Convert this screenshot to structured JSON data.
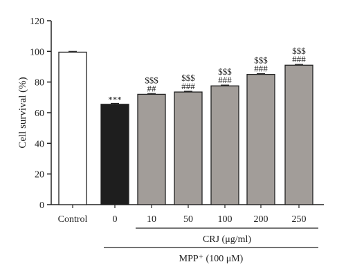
{
  "chart_data": {
    "type": "bar",
    "categories": [
      "Control",
      "0",
      "10",
      "50",
      "100",
      "200",
      "250"
    ],
    "values": [
      99.5,
      65.5,
      72.0,
      73.5,
      77.5,
      85.0,
      91.0
    ],
    "errors": [
      0.5,
      0.6,
      0.5,
      0.5,
      0.5,
      0.5,
      0.5
    ],
    "bar_fill_colors": [
      "#ffffff",
      "#1e1e1e",
      "#a29d99",
      "#a29d99",
      "#a29d99",
      "#a29d99",
      "#a29d99"
    ],
    "sig_top": [
      "",
      "",
      "$$$",
      "$$$",
      "$$$",
      "$$$",
      "$$$"
    ],
    "sig_mid": [
      "",
      "***",
      "##",
      "###",
      "###",
      "###",
      "###"
    ],
    "ylabel": "Cell survival (%)",
    "xlabel": "",
    "ylim": [
      0,
      120
    ],
    "yticks": [
      0,
      20,
      40,
      60,
      80,
      100,
      120
    ],
    "grid": false,
    "groups": {
      "crj_label": "CRJ (μg/ml)",
      "mpp_label": "MPP⁺ (100 μM)"
    }
  }
}
